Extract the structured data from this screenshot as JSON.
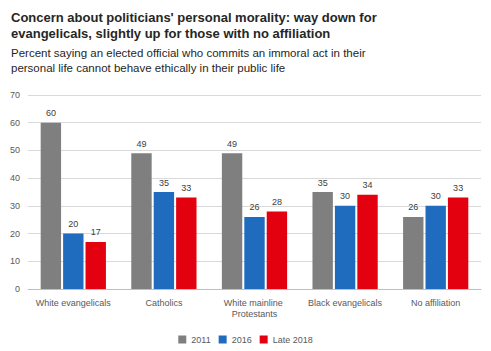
{
  "chart_data": {
    "type": "bar",
    "title": "Concern about politicians' personal morality: way down for evangelicals, slightly up for those with no affiliation",
    "subtitle": "Percent saying an elected official who commits an immoral act in their personal life cannot behave ethically in their public life",
    "categories": [
      "White evangelicals",
      "Catholics",
      "White mainline Protestants",
      "Black evangelicals",
      "No affiliation"
    ],
    "series": [
      {
        "name": "2011",
        "color": "#7f7f7f",
        "values": [
          60,
          49,
          49,
          35,
          26
        ]
      },
      {
        "name": "2016",
        "color": "#1f6cbf",
        "values": [
          20,
          35,
          26,
          30,
          30
        ]
      },
      {
        "name": "Late 2018",
        "color": "#e3000f",
        "values": [
          17,
          33,
          28,
          34,
          33
        ]
      }
    ],
    "ylim": [
      0,
      70
    ],
    "yticks": [
      0,
      10,
      20,
      30,
      40,
      50,
      60,
      70
    ],
    "grid": true,
    "legend": "bottom",
    "data_labels": true
  }
}
